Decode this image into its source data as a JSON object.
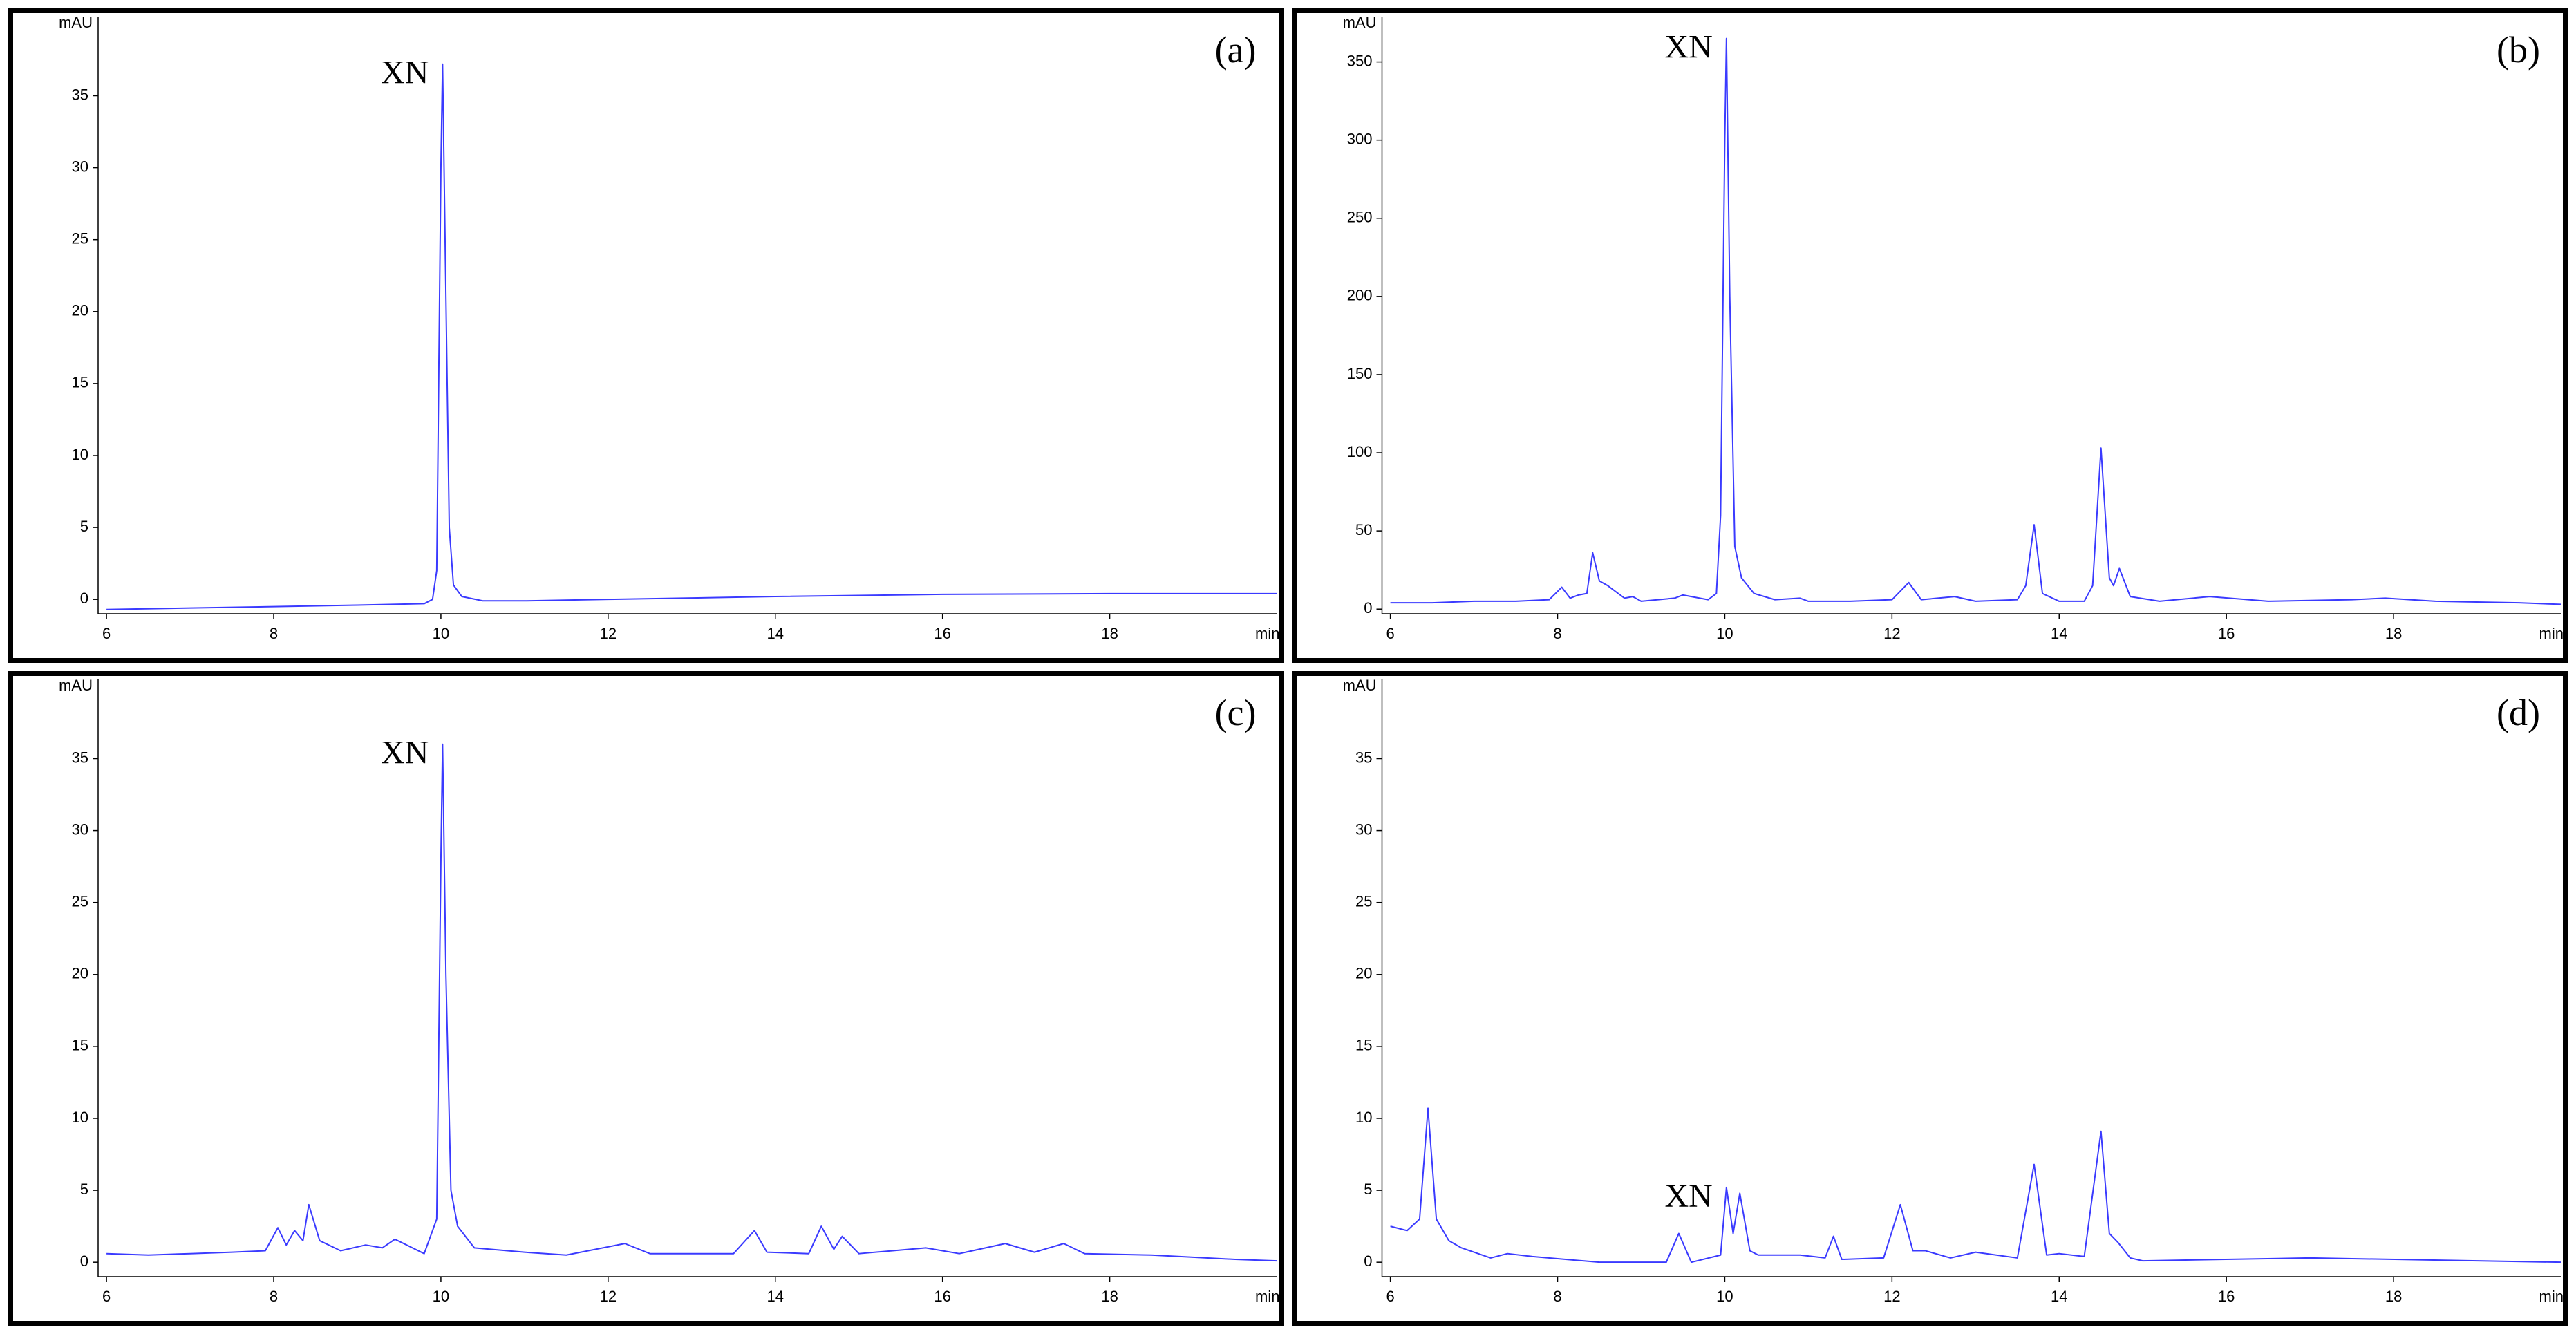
{
  "chart_data": [
    {
      "type": "line",
      "label": "(a)",
      "annotation": {
        "text": "XN",
        "x": 10.02
      },
      "xlabel": "min",
      "ylabel": "mAU",
      "xlim": [
        5.9,
        20
      ],
      "ylim": [
        -1,
        40.5
      ],
      "xticks": [
        6,
        8,
        10,
        12,
        14,
        16,
        18
      ],
      "yticks": [
        0,
        5,
        10,
        15,
        20,
        25,
        30,
        35
      ],
      "series": [
        {
          "color": "#3a3aff",
          "x": [
            6,
            7,
            8,
            9,
            9.8,
            9.9,
            9.95,
            10.0,
            10.02,
            10.05,
            10.1,
            10.15,
            10.25,
            10.5,
            11,
            12,
            14,
            16,
            18,
            20
          ],
          "values": [
            -0.7,
            -0.6,
            -0.5,
            -0.4,
            -0.3,
            0,
            2,
            30,
            37.2,
            25,
            5,
            1,
            0.2,
            -0.1,
            -0.1,
            0,
            0.2,
            0.35,
            0.4,
            0.4
          ]
        }
      ]
    },
    {
      "type": "line",
      "label": "(b)",
      "annotation": {
        "text": "XN",
        "x": 10.02
      },
      "xlabel": "min",
      "ylabel": "mAU",
      "xlim": [
        5.9,
        20
      ],
      "ylim": [
        -3,
        379
      ],
      "xticks": [
        6,
        8,
        10,
        12,
        14,
        16,
        18
      ],
      "yticks": [
        0,
        50,
        100,
        150,
        200,
        250,
        300,
        350
      ],
      "series": [
        {
          "color": "#3a3aff",
          "x": [
            6,
            6.5,
            7,
            7.5,
            7.9,
            8.05,
            8.15,
            8.25,
            8.35,
            8.42,
            8.5,
            8.6,
            8.8,
            8.9,
            9.0,
            9.4,
            9.5,
            9.8,
            9.9,
            9.95,
            10.0,
            10.02,
            10.06,
            10.12,
            10.2,
            10.35,
            10.6,
            10.9,
            11.0,
            11.5,
            12.0,
            12.2,
            12.35,
            12.75,
            13.0,
            13.5,
            13.6,
            13.7,
            13.8,
            14.0,
            14.3,
            14.4,
            14.5,
            14.6,
            14.65,
            14.72,
            14.85,
            15.2,
            15.8,
            16.5,
            17.5,
            17.9,
            18.5,
            19.5,
            20
          ],
          "values": [
            4,
            4,
            5,
            5,
            6,
            14,
            7,
            9,
            10,
            36,
            18,
            15,
            7,
            8,
            5,
            7,
            9,
            6,
            10,
            60,
            300,
            365,
            200,
            40,
            20,
            10,
            6,
            7,
            5,
            5,
            6,
            17,
            6,
            8,
            5,
            6,
            15,
            54,
            10,
            5,
            5,
            15,
            103,
            20,
            15,
            26,
            8,
            5,
            8,
            5,
            6,
            7,
            5,
            4,
            3
          ]
        }
      ]
    },
    {
      "type": "line",
      "label": "(c)",
      "annotation": {
        "text": "XN",
        "x": 10.02
      },
      "xlabel": "min",
      "ylabel": "mAU",
      "xlim": [
        5.9,
        20
      ],
      "ylim": [
        -1,
        40.5
      ],
      "xticks": [
        6,
        8,
        10,
        12,
        14,
        16,
        18
      ],
      "yticks": [
        0,
        5,
        10,
        15,
        20,
        25,
        30,
        35
      ],
      "series": [
        {
          "color": "#3a3aff",
          "x": [
            6,
            6.5,
            7,
            7.5,
            7.9,
            8.05,
            8.15,
            8.25,
            8.35,
            8.42,
            8.55,
            8.8,
            9.1,
            9.3,
            9.45,
            9.8,
            9.95,
            10.0,
            10.02,
            10.06,
            10.12,
            10.2,
            10.4,
            11,
            11.5,
            12.2,
            12.5,
            13.5,
            13.75,
            13.9,
            14.4,
            14.55,
            14.7,
            14.8,
            15.0,
            15.8,
            16.2,
            16.75,
            17.1,
            17.45,
            17.7,
            18.5,
            19.5,
            20
          ],
          "values": [
            0.6,
            0.5,
            0.6,
            0.7,
            0.8,
            2.4,
            1.2,
            2.2,
            1.5,
            4,
            1.5,
            0.8,
            1.2,
            1,
            1.6,
            0.6,
            3,
            28,
            36,
            20,
            5,
            2.5,
            1,
            0.7,
            0.5,
            1.3,
            0.6,
            0.6,
            2.2,
            0.7,
            0.6,
            2.5,
            0.9,
            1.8,
            0.6,
            1,
            0.6,
            1.3,
            0.7,
            1.3,
            0.6,
            0.5,
            0.2,
            0.1
          ]
        }
      ]
    },
    {
      "type": "line",
      "label": "(d)",
      "annotation": {
        "text": "XN",
        "x": 10.02
      },
      "xlabel": "min",
      "ylabel": "mAU",
      "xlim": [
        5.9,
        20
      ],
      "ylim": [
        -1,
        40.5
      ],
      "xticks": [
        6,
        8,
        10,
        12,
        14,
        16,
        18
      ],
      "yticks": [
        0,
        5,
        10,
        15,
        20,
        25,
        30,
        35
      ],
      "series": [
        {
          "color": "#3a3aff",
          "x": [
            6,
            6.2,
            6.35,
            6.45,
            6.55,
            6.7,
            6.85,
            7.2,
            7.4,
            7.7,
            8.5,
            9.3,
            9.45,
            9.6,
            9.95,
            10.02,
            10.1,
            10.18,
            10.3,
            10.4,
            10.9,
            11.2,
            11.3,
            11.4,
            11.9,
            12.1,
            12.25,
            12.4,
            12.7,
            13.0,
            13.5,
            13.7,
            13.85,
            14.0,
            14.3,
            14.5,
            14.6,
            14.7,
            14.85,
            15.0,
            17,
            20
          ],
          "values": [
            2.5,
            2.2,
            3,
            10.7,
            3,
            1.5,
            1,
            0.3,
            0.6,
            0.4,
            0,
            0,
            2,
            0,
            0.5,
            5.2,
            2,
            4.8,
            0.8,
            0.5,
            0.5,
            0.3,
            1.8,
            0.2,
            0.3,
            4,
            0.8,
            0.8,
            0.3,
            0.7,
            0.3,
            6.8,
            0.5,
            0.6,
            0.4,
            9.1,
            2,
            1.4,
            0.3,
            0.1,
            0.3,
            0
          ]
        }
      ]
    }
  ]
}
